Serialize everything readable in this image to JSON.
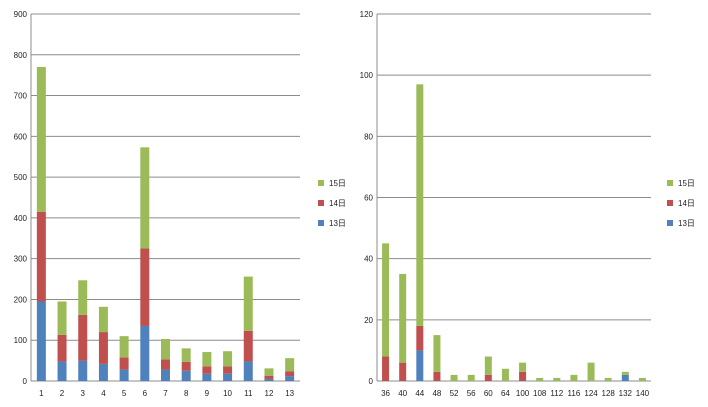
{
  "chart_data": [
    {
      "type": "bar",
      "stacked": true,
      "categories": [
        "1",
        "2",
        "3",
        "4",
        "5",
        "6",
        "7",
        "8",
        "9",
        "10",
        "11",
        "12",
        "13"
      ],
      "series": [
        {
          "name": "13日",
          "color": "#4f81bd",
          "values": [
            195,
            48,
            50,
            42,
            28,
            135,
            28,
            25,
            18,
            18,
            48,
            5,
            12
          ]
        },
        {
          "name": "14日",
          "color": "#c0504d",
          "values": [
            220,
            65,
            112,
            78,
            30,
            190,
            25,
            22,
            18,
            18,
            75,
            8,
            12
          ]
        },
        {
          "name": "15日",
          "color": "#9bbb59",
          "values": [
            355,
            82,
            85,
            62,
            52,
            248,
            50,
            33,
            35,
            37,
            133,
            18,
            32
          ]
        }
      ],
      "yticks": [
        "0",
        "100",
        "200",
        "300",
        "400",
        "500",
        "600",
        "700",
        "800",
        "900"
      ],
      "ylim": [
        0,
        900
      ],
      "grid": true,
      "legend": "right"
    },
    {
      "type": "bar",
      "stacked": true,
      "categories": [
        "36",
        "40",
        "44",
        "48",
        "52",
        "56",
        "60",
        "64",
        "100",
        "108",
        "112",
        "116",
        "124",
        "128",
        "132",
        "140"
      ],
      "series": [
        {
          "name": "13日",
          "color": "#4f81bd",
          "values": [
            0,
            0,
            10,
            0,
            0,
            0,
            0,
            0,
            0,
            0,
            0,
            0,
            0,
            0,
            2,
            0
          ]
        },
        {
          "name": "14日",
          "color": "#c0504d",
          "values": [
            8,
            6,
            8,
            3,
            0,
            0,
            2,
            0,
            3,
            0,
            0,
            0,
            0,
            0,
            0,
            0
          ]
        },
        {
          "name": "15日",
          "color": "#9bbb59",
          "values": [
            37,
            29,
            79,
            12,
            2,
            2,
            6,
            4,
            3,
            1,
            1,
            2,
            6,
            1,
            1,
            1
          ]
        }
      ],
      "yticks": [
        "0",
        "20",
        "40",
        "60",
        "80",
        "100",
        "120"
      ],
      "ylim": [
        0,
        120
      ],
      "grid": true,
      "legend": "right"
    }
  ]
}
